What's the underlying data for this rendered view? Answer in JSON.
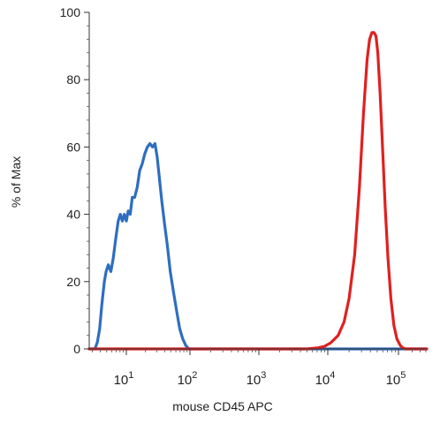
{
  "chart_data": {
    "type": "line",
    "title": "",
    "xlabel": "mouse CD45 APC",
    "ylabel": "% of Max",
    "xscale": "biexponential (log decades)",
    "xlim": [
      2.7,
      420000
    ],
    "ylim": [
      0,
      100
    ],
    "grid": false,
    "legend": "none",
    "x_tick_labels": [
      {
        "value": 10,
        "base": "10",
        "exp": "1"
      },
      {
        "value": 100,
        "base": "10",
        "exp": "2"
      },
      {
        "value": 1000,
        "base": "10",
        "exp": "3"
      },
      {
        "value": 10000,
        "base": "10",
        "exp": "4"
      },
      {
        "value": 100000,
        "base": "10",
        "exp": "5"
      }
    ],
    "y_ticks": [
      0,
      20,
      40,
      60,
      80,
      100
    ],
    "series": [
      {
        "color": "#2e6ebf",
        "points": [
          [
            2.7,
            0
          ],
          [
            3.3,
            0
          ],
          [
            3.6,
            2
          ],
          [
            3.9,
            6
          ],
          [
            4.2,
            13
          ],
          [
            4.6,
            20
          ],
          [
            4.9,
            23
          ],
          [
            5.3,
            25
          ],
          [
            5.8,
            23
          ],
          [
            6.3,
            27
          ],
          [
            6.9,
            33
          ],
          [
            7.5,
            38
          ],
          [
            8.1,
            40
          ],
          [
            8.7,
            38
          ],
          [
            9.3,
            40
          ],
          [
            10,
            38
          ],
          [
            10.7,
            41
          ],
          [
            11.5,
            40
          ],
          [
            12.4,
            45
          ],
          [
            13.5,
            45
          ],
          [
            14.8,
            48
          ],
          [
            16.2,
            53
          ],
          [
            17.8,
            55
          ],
          [
            19.5,
            58
          ],
          [
            21.4,
            60
          ],
          [
            23.5,
            61
          ],
          [
            25.8,
            60
          ],
          [
            28.2,
            61
          ],
          [
            30.5,
            57
          ],
          [
            33,
            51
          ],
          [
            36,
            44
          ],
          [
            40,
            37
          ],
          [
            44,
            31
          ],
          [
            49,
            23
          ],
          [
            55,
            17
          ],
          [
            62,
            11
          ],
          [
            69,
            6
          ],
          [
            77,
            3
          ],
          [
            86,
            1
          ],
          [
            96,
            0
          ],
          [
            110,
            0
          ],
          [
            420000,
            0
          ]
        ]
      },
      {
        "color": "#e02020",
        "points": [
          [
            2.7,
            0
          ],
          [
            5000,
            0
          ],
          [
            7000,
            0.3
          ],
          [
            9000,
            0.8
          ],
          [
            11000,
            1.8
          ],
          [
            14000,
            4
          ],
          [
            17000,
            8
          ],
          [
            20000,
            15
          ],
          [
            24000,
            28
          ],
          [
            28000,
            48
          ],
          [
            32000,
            70
          ],
          [
            36000,
            86
          ],
          [
            39000,
            92
          ],
          [
            42000,
            94
          ],
          [
            45000,
            94
          ],
          [
            48000,
            93
          ],
          [
            51000,
            88
          ],
          [
            55000,
            76
          ],
          [
            60000,
            58
          ],
          [
            65000,
            42
          ],
          [
            71000,
            27
          ],
          [
            78000,
            15
          ],
          [
            86000,
            7
          ],
          [
            95000,
            3
          ],
          [
            110000,
            1
          ],
          [
            125000,
            0.3
          ],
          [
            145000,
            0
          ],
          [
            420000,
            0
          ]
        ]
      }
    ]
  }
}
